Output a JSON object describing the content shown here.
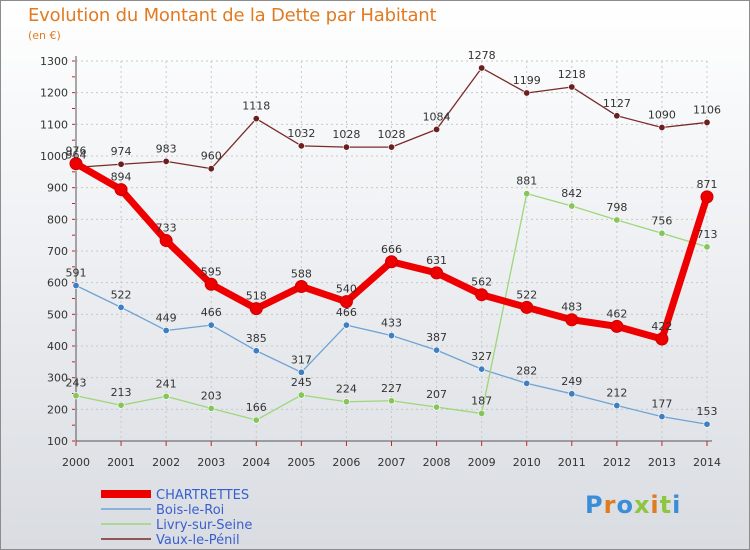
{
  "title": "Evolution du Montant de la Dette par Habitant",
  "unit_label": "(en €)",
  "logo": {
    "text": "Proxiti",
    "letter_colors": [
      "#3a8ed8",
      "#e07b22",
      "#3a8ed8",
      "#8dc63f",
      "#e07b22",
      "#8dc63f",
      "#3a8ed8"
    ]
  },
  "chart_data": {
    "type": "line",
    "title": "Evolution du Montant de la Dette par Habitant",
    "ylabel": "(en €)",
    "ylim": [
      100,
      1300
    ],
    "yticks": [
      100,
      200,
      300,
      400,
      500,
      600,
      700,
      800,
      900,
      1000,
      1100,
      1200,
      1300
    ],
    "grid": true,
    "legend_position": "bottom-left",
    "x": [
      "2000",
      "2001",
      "2002",
      "2003",
      "2004",
      "2005",
      "2006",
      "2007",
      "2008",
      "2009",
      "2010",
      "2011",
      "2012",
      "2013",
      "2014"
    ],
    "series": [
      {
        "name": "Vaux-le-Pénil",
        "color": "#7a2a2a",
        "marker": "#6b1f1f",
        "values": [
          964,
          974,
          983,
          960,
          1118,
          1032,
          1028,
          1028,
          1084,
          1278,
          1199,
          1218,
          1127,
          1090,
          1106
        ]
      },
      {
        "name": "Bois-le-Roi",
        "color": "#6fa3d4",
        "marker": "#3f7fc1",
        "values": [
          591,
          522,
          449,
          466,
          385,
          317,
          466,
          433,
          387,
          327,
          282,
          249,
          212,
          177,
          153
        ]
      },
      {
        "name": "Livry-sur-Seine",
        "color": "#9ed67a",
        "marker": "#86c55a",
        "values": [
          243,
          213,
          241,
          203,
          166,
          245,
          224,
          227,
          207,
          187,
          881,
          842,
          798,
          756,
          713
        ]
      },
      {
        "name": "CHARTRETTES",
        "color": "#ee0000",
        "marker": "#ee0000",
        "values": [
          976,
          894,
          733,
          595,
          518,
          588,
          540,
          666,
          631,
          562,
          522,
          483,
          462,
          422,
          871
        ]
      }
    ]
  },
  "legend": [
    {
      "label": "CHARTRETTES",
      "color": "#ee0000",
      "thick": true
    },
    {
      "label": "Bois-le-Roi",
      "color": "#6fa3d4",
      "thick": false
    },
    {
      "label": "Livry-sur-Seine",
      "color": "#9ed67a",
      "thick": false
    },
    {
      "label": "Vaux-le-Pénil",
      "color": "#7a2a2a",
      "thick": false
    }
  ]
}
